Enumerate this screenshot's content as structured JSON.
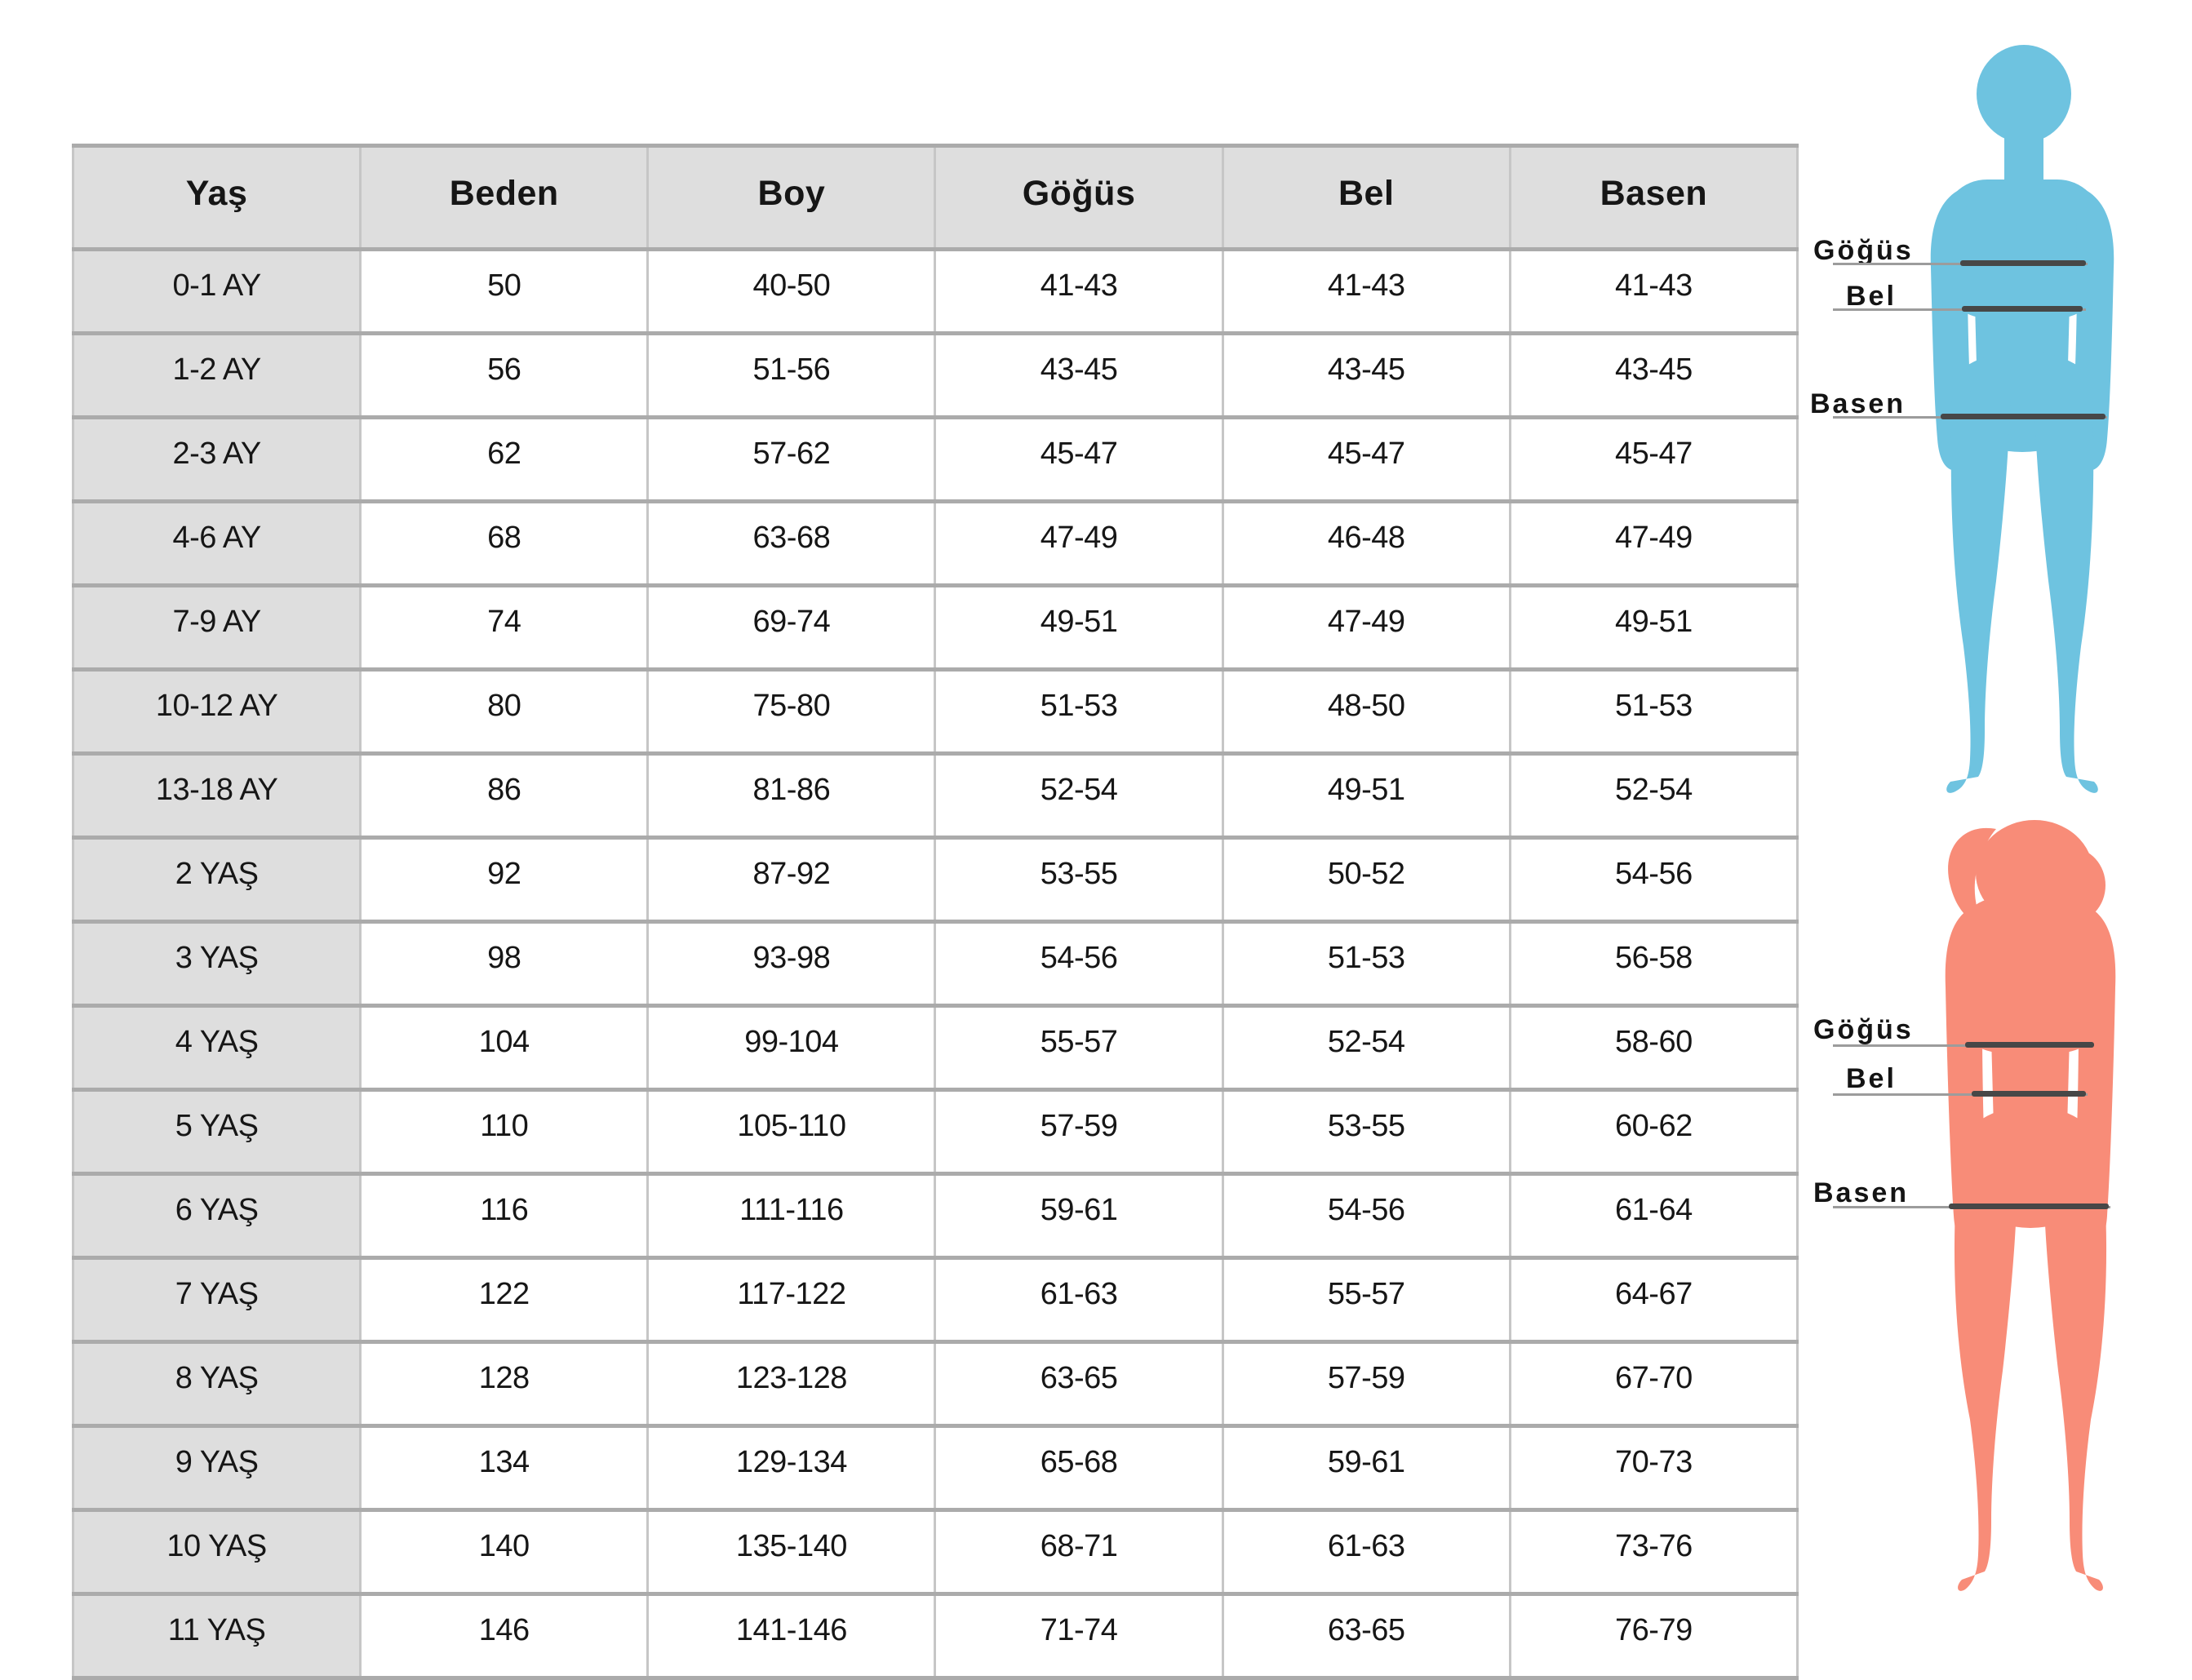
{
  "chart_data": {
    "type": "table",
    "columns": [
      "Yaş",
      "Beden",
      "Boy",
      "Göğüs",
      "Bel",
      "Basen"
    ],
    "rows": [
      [
        "0-1 AY",
        "50",
        "40-50",
        "41-43",
        "41-43",
        "41-43"
      ],
      [
        "1-2 AY",
        "56",
        "51-56",
        "43-45",
        "43-45",
        "43-45"
      ],
      [
        "2-3 AY",
        "62",
        "57-62",
        "45-47",
        "45-47",
        "45-47"
      ],
      [
        "4-6 AY",
        "68",
        "63-68",
        "47-49",
        "46-48",
        "47-49"
      ],
      [
        "7-9 AY",
        "74",
        "69-74",
        "49-51",
        "47-49",
        "49-51"
      ],
      [
        "10-12 AY",
        "80",
        "75-80",
        "51-53",
        "48-50",
        "51-53"
      ],
      [
        "13-18 AY",
        "86",
        "81-86",
        "52-54",
        "49-51",
        "52-54"
      ],
      [
        "2 YAŞ",
        "92",
        "87-92",
        "53-55",
        "50-52",
        "54-56"
      ],
      [
        "3 YAŞ",
        "98",
        "93-98",
        "54-56",
        "51-53",
        "56-58"
      ],
      [
        "4 YAŞ",
        "104",
        "99-104",
        "55-57",
        "52-54",
        "58-60"
      ],
      [
        "5 YAŞ",
        "110",
        "105-110",
        "57-59",
        "53-55",
        "60-62"
      ],
      [
        "6 YAŞ",
        "116",
        "111-116",
        "59-61",
        "54-56",
        "61-64"
      ],
      [
        "7 YAŞ",
        "122",
        "117-122",
        "61-63",
        "55-57",
        "64-67"
      ],
      [
        "8 YAŞ",
        "128",
        "123-128",
        "63-65",
        "57-59",
        "67-70"
      ],
      [
        "9 YAŞ",
        "134",
        "129-134",
        "65-68",
        "59-61",
        "70-73"
      ],
      [
        "10 YAŞ",
        "140",
        "135-140",
        "68-71",
        "61-63",
        "73-76"
      ],
      [
        "11 YAŞ",
        "146",
        "141-146",
        "71-74",
        "63-65",
        "76-79"
      ]
    ],
    "layout": {
      "grid": "on",
      "header_row": true,
      "header_column": true
    }
  },
  "figures": {
    "boy": {
      "color": "#6EC3E0",
      "labels": [
        "Göğüs",
        "Bel",
        "Basen"
      ]
    },
    "girl": {
      "color": "#F88C78",
      "labels": [
        "Göğüs",
        "Bel",
        "Basen"
      ]
    }
  },
  "colors": {
    "header_bg": "#dedede",
    "row_label_bg": "#dedede",
    "cell_bg": "#ffffff",
    "border_horizontal": "#ababab",
    "border_vertical": "#c6c6c6",
    "text": "#161616",
    "measure_line_dark": "#474747",
    "measure_line_light": "#9c9c9c",
    "boy_fill": "#6EC3E0",
    "girl_fill": "#F88C78"
  }
}
